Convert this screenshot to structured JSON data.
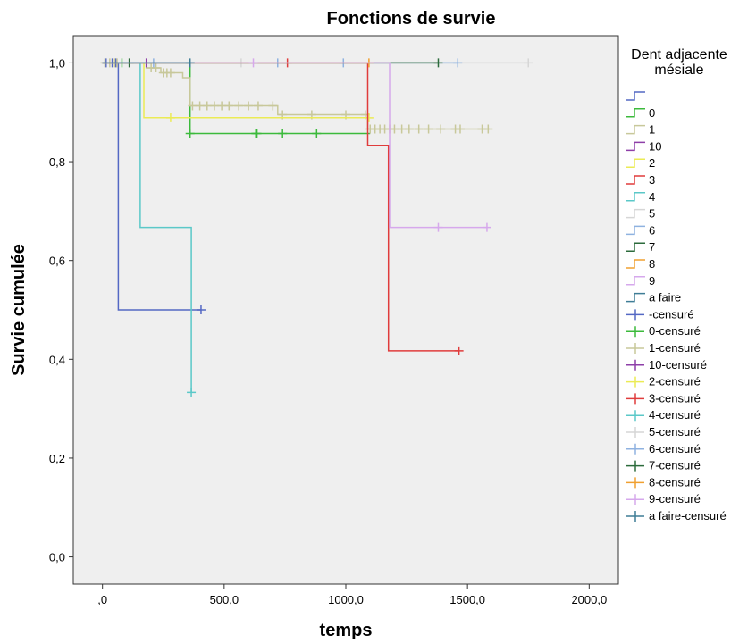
{
  "chart_data": {
    "type": "line",
    "title": "Fonctions de survie",
    "xlabel": "temps",
    "ylabel": "Survie cumulée",
    "xlim": [
      -120,
      2120
    ],
    "ylim": [
      -0.055,
      1.055
    ],
    "xticks": [
      {
        "v": 0,
        "label": ",0"
      },
      {
        "v": 500,
        "label": "500,0"
      },
      {
        "v": 1000,
        "label": "1000,0"
      },
      {
        "v": 1500,
        "label": "1500,0"
      },
      {
        "v": 2000,
        "label": "2000,0"
      }
    ],
    "yticks": [
      {
        "v": 0.0,
        "label": "0,0"
      },
      {
        "v": 0.2,
        "label": "0,2"
      },
      {
        "v": 0.4,
        "label": "0,4"
      },
      {
        "v": 0.6,
        "label": "0,6"
      },
      {
        "v": 0.8,
        "label": "0,8"
      },
      {
        "v": 1.0,
        "label": "1,0"
      }
    ],
    "grid": false,
    "legend": {
      "title_lines": [
        "Dent adjacente",
        "mésiale"
      ],
      "placement": "right",
      "step_entries": [
        "",
        "0",
        "1",
        "10",
        "2",
        "3",
        "4",
        "5",
        "6",
        "7",
        "8",
        "9",
        "a faire"
      ],
      "censored_entries": [
        "-censuré",
        "0-censuré",
        "1-censuré",
        "10-censuré",
        "2-censuré",
        "3-censuré",
        "4-censuré",
        "5-censuré",
        "6-censuré",
        "7-censuré",
        "8-censuré",
        "9-censuré",
        "a faire-censuré"
      ]
    },
    "series": [
      {
        "name": "",
        "color": "#5468c4",
        "steps": [
          [
            0,
            1.0
          ],
          [
            65,
            1.0
          ],
          [
            65,
            0.5
          ],
          [
            405,
            0.5
          ]
        ],
        "censored": [
          [
            15,
            1.0
          ],
          [
            40,
            1.0
          ],
          [
            55,
            1.0
          ],
          [
            405,
            0.5
          ]
        ]
      },
      {
        "name": "0",
        "color": "#3cba3c",
        "steps": [
          [
            0,
            1.0
          ],
          [
            360,
            1.0
          ],
          [
            360,
            0.857
          ],
          [
            1100,
            0.857
          ]
        ],
        "censored": [
          [
            80,
            1.0
          ],
          [
            360,
            0.857
          ],
          [
            630,
            0.857
          ],
          [
            635,
            0.857
          ],
          [
            740,
            0.857
          ],
          [
            880,
            0.857
          ]
        ]
      },
      {
        "name": "1",
        "color": "#c8c89a",
        "steps": [
          [
            0,
            1.0
          ],
          [
            180,
            1.0
          ],
          [
            180,
            0.99
          ],
          [
            240,
            0.99
          ],
          [
            240,
            0.98
          ],
          [
            330,
            0.98
          ],
          [
            330,
            0.97
          ],
          [
            360,
            0.97
          ],
          [
            360,
            0.913
          ],
          [
            720,
            0.913
          ],
          [
            720,
            0.895
          ],
          [
            1090,
            0.895
          ],
          [
            1090,
            0.866
          ],
          [
            1590,
            0.866
          ]
        ],
        "censored": [
          [
            10,
            1.0
          ],
          [
            30,
            1.0
          ],
          [
            50,
            1.0
          ],
          [
            60,
            1.0
          ],
          [
            200,
            0.99
          ],
          [
            220,
            0.99
          ],
          [
            250,
            0.98
          ],
          [
            265,
            0.98
          ],
          [
            280,
            0.98
          ],
          [
            370,
            0.913
          ],
          [
            400,
            0.913
          ],
          [
            430,
            0.913
          ],
          [
            460,
            0.913
          ],
          [
            490,
            0.913
          ],
          [
            520,
            0.913
          ],
          [
            560,
            0.913
          ],
          [
            600,
            0.913
          ],
          [
            640,
            0.913
          ],
          [
            700,
            0.913
          ],
          [
            740,
            0.895
          ],
          [
            860,
            0.895
          ],
          [
            1000,
            0.895
          ],
          [
            1080,
            0.895
          ],
          [
            1100,
            0.866
          ],
          [
            1120,
            0.866
          ],
          [
            1140,
            0.866
          ],
          [
            1160,
            0.866
          ],
          [
            1180,
            0.866
          ],
          [
            1200,
            0.866
          ],
          [
            1230,
            0.866
          ],
          [
            1260,
            0.866
          ],
          [
            1300,
            0.866
          ],
          [
            1340,
            0.866
          ],
          [
            1390,
            0.866
          ],
          [
            1450,
            0.866
          ],
          [
            1470,
            0.866
          ],
          [
            1560,
            0.866
          ],
          [
            1585,
            0.866
          ]
        ]
      },
      {
        "name": "10",
        "color": "#8e3fa8",
        "steps": [
          [
            0,
            1.0
          ],
          [
            180,
            1.0
          ]
        ],
        "censored": [
          [
            180,
            1.0
          ]
        ]
      },
      {
        "name": "2",
        "color": "#ebeb55",
        "steps": [
          [
            0,
            1.0
          ],
          [
            170,
            1.0
          ],
          [
            170,
            0.889
          ],
          [
            1095,
            0.889
          ]
        ],
        "censored": [
          [
            280,
            0.889
          ],
          [
            1095,
            0.889
          ]
        ]
      },
      {
        "name": "3",
        "color": "#e03c3c",
        "steps": [
          [
            0,
            1.0
          ],
          [
            1090,
            1.0
          ],
          [
            1090,
            0.833
          ],
          [
            1175,
            0.833
          ],
          [
            1175,
            0.417
          ],
          [
            1465,
            0.417
          ]
        ],
        "censored": [
          [
            760,
            1.0
          ],
          [
            1465,
            0.417
          ]
        ]
      },
      {
        "name": "4",
        "color": "#5bc8c8",
        "steps": [
          [
            0,
            1.0
          ],
          [
            155,
            1.0
          ],
          [
            155,
            0.667
          ],
          [
            365,
            0.667
          ],
          [
            365,
            0.333
          ]
        ],
        "censored": [
          [
            365,
            0.333
          ]
        ]
      },
      {
        "name": "5",
        "color": "#d6d6d6",
        "steps": [
          [
            0,
            1.0
          ],
          [
            1750,
            1.0
          ]
        ],
        "censored": [
          [
            570,
            1.0
          ],
          [
            1750,
            1.0
          ]
        ]
      },
      {
        "name": "6",
        "color": "#8fb2e0",
        "steps": [
          [
            0,
            1.0
          ],
          [
            1460,
            1.0
          ]
        ],
        "censored": [
          [
            210,
            1.0
          ],
          [
            720,
            1.0
          ],
          [
            990,
            1.0
          ],
          [
            1460,
            1.0
          ]
        ]
      },
      {
        "name": "7",
        "color": "#2c6b3c",
        "steps": [
          [
            0,
            1.0
          ],
          [
            1380,
            1.0
          ]
        ],
        "censored": [
          [
            110,
            1.0
          ],
          [
            1380,
            1.0
          ]
        ]
      },
      {
        "name": "8",
        "color": "#f0a030",
        "steps": [
          [
            0,
            1.0
          ],
          [
            1095,
            1.0
          ]
        ],
        "censored": [
          [
            1095,
            1.0
          ]
        ]
      },
      {
        "name": "9",
        "color": "#d6a8ec",
        "steps": [
          [
            0,
            1.0
          ],
          [
            1180,
            1.0
          ],
          [
            1180,
            0.667
          ],
          [
            1580,
            0.667
          ]
        ],
        "censored": [
          [
            620,
            1.0
          ],
          [
            1380,
            0.667
          ],
          [
            1580,
            0.667
          ]
        ]
      },
      {
        "name": "a faire",
        "color": "#3f7d96",
        "steps": [
          [
            0,
            1.0
          ],
          [
            360,
            1.0
          ]
        ],
        "censored": [
          [
            360,
            1.0
          ]
        ]
      }
    ]
  }
}
